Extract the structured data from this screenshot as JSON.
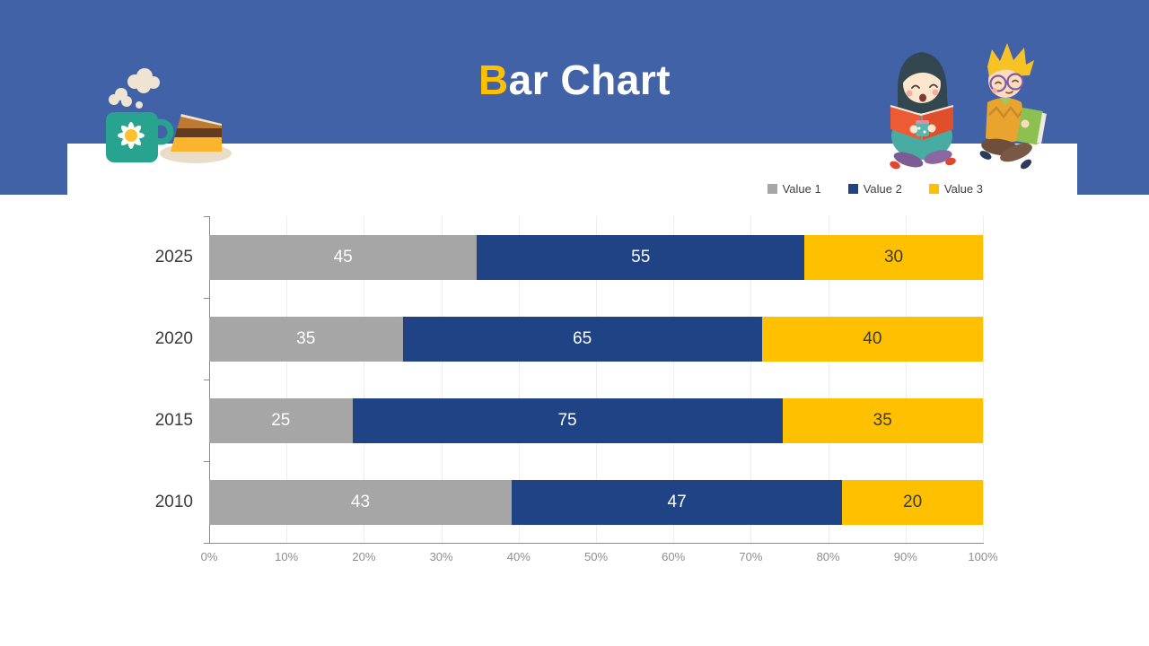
{
  "slide": {
    "title": {
      "accent": "B",
      "rest": "ar Chart"
    },
    "colors": {
      "header_bg": "#4262A8",
      "accent_yellow": "#FFC000",
      "panel_bg": "#FFFFFF"
    }
  },
  "chart_data": {
    "type": "bar",
    "orientation": "horizontal",
    "stacked_100_percent": true,
    "categories": [
      "2025",
      "2020",
      "2015",
      "2010"
    ],
    "series": [
      {
        "name": "Value 1",
        "color": "#A6A6A6",
        "label_color": "#FFFFFF",
        "values": [
          45,
          35,
          25,
          43
        ]
      },
      {
        "name": "Value 2",
        "color": "#1F4384",
        "label_color": "#FFFFFF",
        "values": [
          55,
          65,
          75,
          47
        ]
      },
      {
        "name": "Value 3",
        "color": "#FFC000",
        "label_color": "#3B3B3B",
        "values": [
          30,
          40,
          35,
          20
        ]
      }
    ],
    "x_ticks": [
      "0%",
      "10%",
      "20%",
      "30%",
      "40%",
      "50%",
      "60%",
      "70%",
      "80%",
      "90%",
      "100%"
    ],
    "xlim": [
      0,
      100
    ],
    "title": "Bar Chart",
    "xlabel": "",
    "ylabel": "",
    "grid": true,
    "legend_position": "top-right"
  },
  "decorations": {
    "left": "coffee-mug-and-cake-illustration",
    "right": "two-children-reading-books-illustration"
  }
}
